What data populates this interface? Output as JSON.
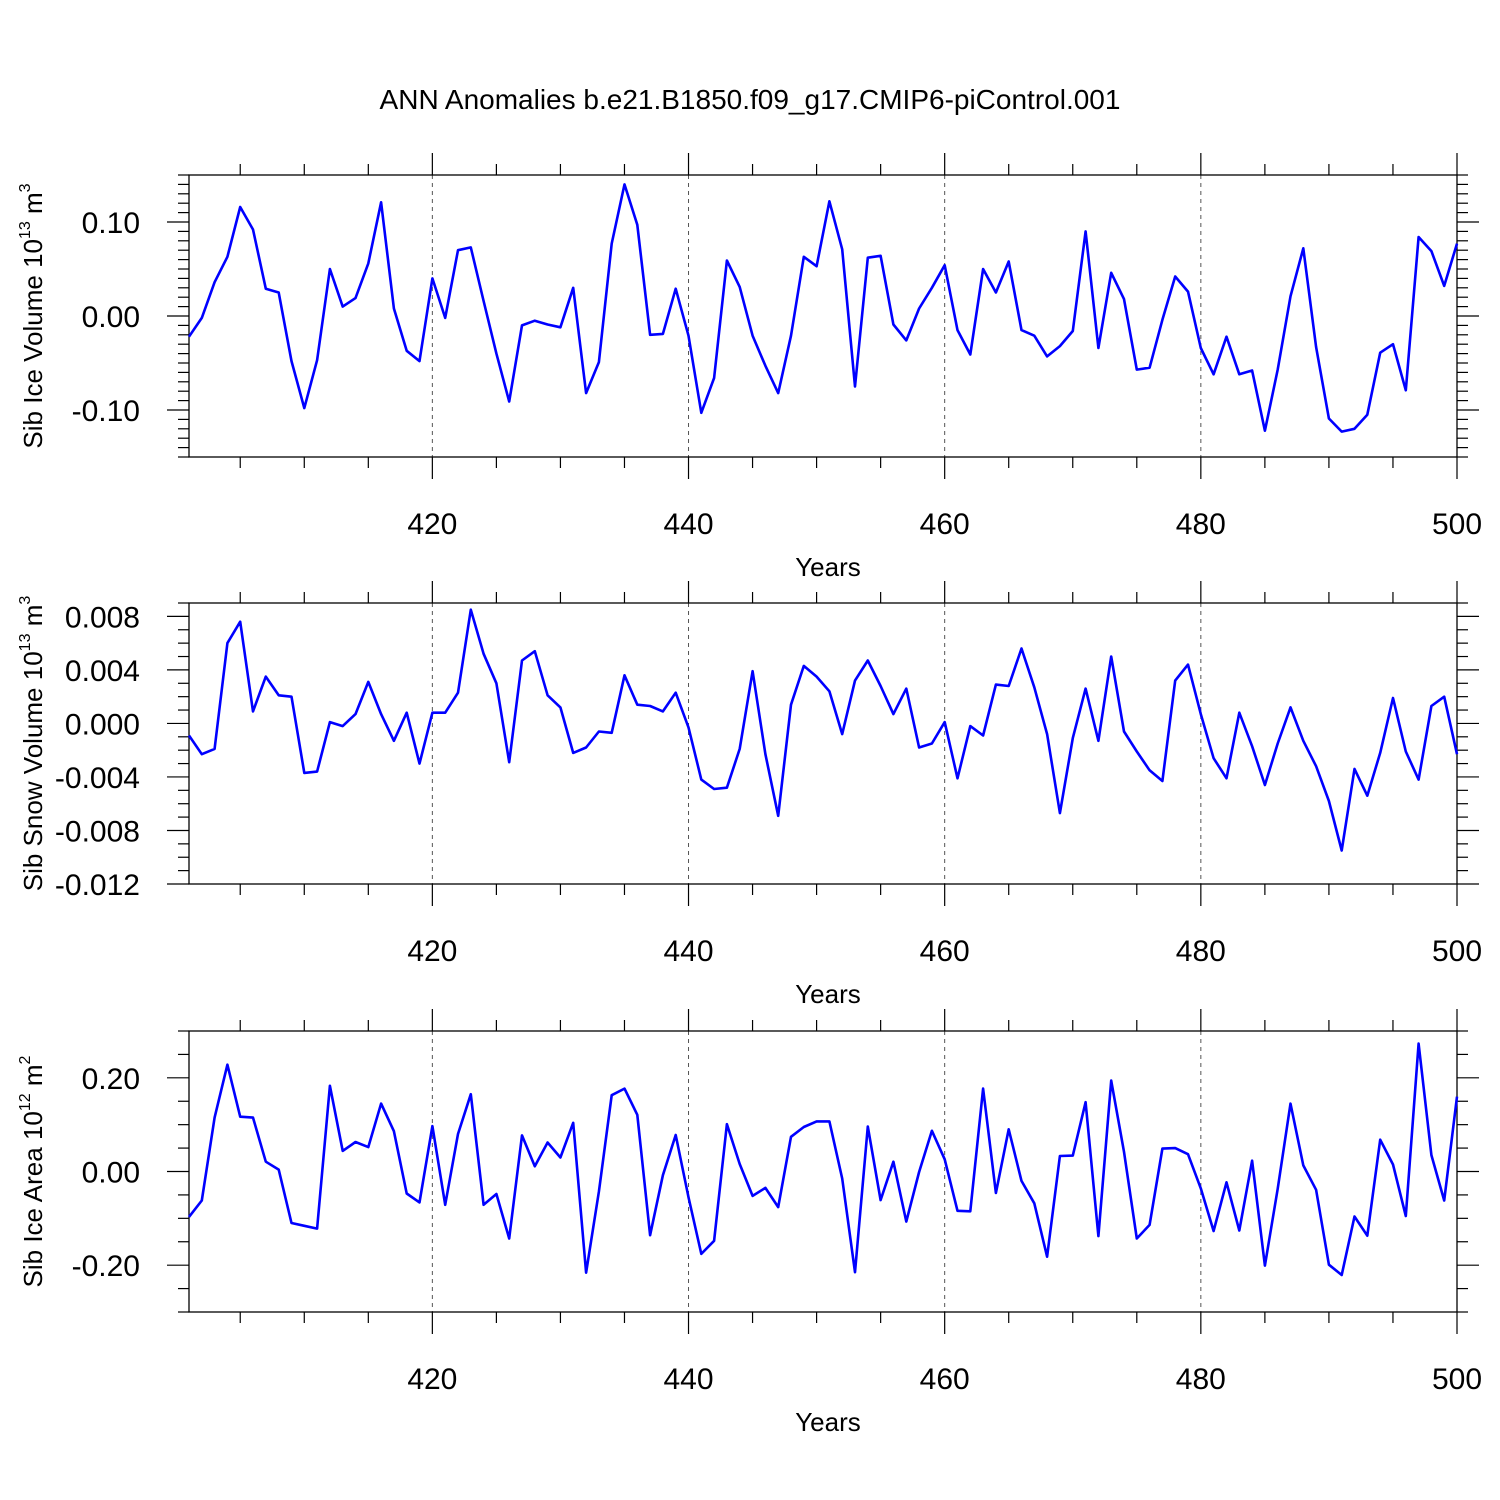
{
  "chart_data": [
    {
      "type": "line",
      "title": "ANN Anomalies b.e21.B1850.f09_g17.CMIP6-piControl.001",
      "xlabel": "Years",
      "ylabel": "Sib Ice Volume 10",
      "ylabel_exp": "13",
      "ylabel_unit": " m",
      "ylabel_unit_exp": "3",
      "xlim": [
        401,
        500
      ],
      "ylim": [
        -0.15,
        0.15
      ],
      "xticks": [
        420,
        440,
        460,
        480,
        500
      ],
      "yticks": [
        "0.10",
        "0.00",
        "-0.10"
      ],
      "ytick_values": [
        0.1,
        0.0,
        -0.1
      ],
      "line_color": "#0000ff",
      "grid": "x-dashed",
      "series": [
        {
          "x": [
            401,
            402,
            403,
            404,
            405,
            406,
            407,
            408,
            409,
            410,
            411,
            412,
            413,
            414,
            415,
            416,
            417,
            418,
            419,
            420,
            421,
            422,
            423,
            424,
            425,
            426,
            427,
            428,
            429,
            430,
            431,
            432,
            433,
            434,
            435,
            436,
            437,
            438,
            439,
            440,
            441,
            442,
            443,
            444,
            445,
            446,
            447,
            448,
            449,
            450,
            451,
            452,
            453,
            454,
            455,
            456,
            457,
            458,
            459,
            460,
            461,
            462,
            463,
            464,
            465,
            466,
            467,
            468,
            469,
            470,
            471,
            472,
            473,
            474,
            475,
            476,
            477,
            478,
            479,
            480,
            481,
            482,
            483,
            484,
            485,
            486,
            487,
            488,
            489,
            490,
            491,
            492,
            493,
            494,
            495,
            496,
            497,
            498,
            499,
            500
          ],
          "values": [
            -0.022,
            -0.002,
            0.036,
            0.063,
            0.116,
            0.092,
            0.029,
            0.025,
            -0.048,
            -0.098,
            -0.047,
            0.05,
            0.01,
            0.019,
            0.056,
            0.121,
            0.008,
            -0.037,
            -0.048,
            0.04,
            -0.002,
            0.07,
            0.073,
            0.016,
            -0.04,
            -0.091,
            -0.01,
            -0.005,
            -0.009,
            -0.012,
            0.03,
            -0.082,
            -0.049,
            0.077,
            0.14,
            0.097,
            -0.02,
            -0.019,
            0.029,
            -0.021,
            -0.103,
            -0.066,
            0.059,
            0.031,
            -0.021,
            -0.053,
            -0.082,
            -0.021,
            0.063,
            0.053,
            0.122,
            0.071,
            -0.075,
            0.062,
            0.064,
            -0.009,
            -0.026,
            0.008,
            0.03,
            0.054,
            -0.015,
            -0.041,
            0.05,
            0.025,
            0.058,
            -0.015,
            -0.021,
            -0.043,
            -0.032,
            -0.016,
            0.09,
            -0.034,
            0.046,
            0.018,
            -0.057,
            -0.055,
            -0.004,
            0.042,
            0.026,
            -0.034,
            -0.062,
            -0.022,
            -0.062,
            -0.058,
            -0.122,
            -0.057,
            0.021,
            0.072,
            -0.033,
            -0.109,
            -0.123,
            -0.12,
            -0.105,
            -0.039,
            -0.03,
            -0.079,
            0.084,
            0.069,
            0.032,
            0.077
          ]
        }
      ]
    },
    {
      "type": "line",
      "xlabel": "Years",
      "ylabel": "Sib Snow Volume 10",
      "ylabel_exp": "13",
      "ylabel_unit": " m",
      "ylabel_unit_exp": "3",
      "xlim": [
        401,
        500
      ],
      "ylim": [
        -0.012,
        0.009
      ],
      "xticks": [
        420,
        440,
        460,
        480,
        500
      ],
      "yticks": [
        "0.008",
        "0.004",
        "0.000",
        "-0.004",
        "-0.008",
        "-0.012"
      ],
      "ytick_values": [
        0.008,
        0.004,
        0.0,
        -0.004,
        -0.008,
        -0.012
      ],
      "line_color": "#0000ff",
      "grid": "x-dashed",
      "series": [
        {
          "x": [
            401,
            402,
            403,
            404,
            405,
            406,
            407,
            408,
            409,
            410,
            411,
            412,
            413,
            414,
            415,
            416,
            417,
            418,
            419,
            420,
            421,
            422,
            423,
            424,
            425,
            426,
            427,
            428,
            429,
            430,
            431,
            432,
            433,
            434,
            435,
            436,
            437,
            438,
            439,
            440,
            441,
            442,
            443,
            444,
            445,
            446,
            447,
            448,
            449,
            450,
            451,
            452,
            453,
            454,
            455,
            456,
            457,
            458,
            459,
            460,
            461,
            462,
            463,
            464,
            465,
            466,
            467,
            468,
            469,
            470,
            471,
            472,
            473,
            474,
            475,
            476,
            477,
            478,
            479,
            480,
            481,
            482,
            483,
            484,
            485,
            486,
            487,
            488,
            489,
            490,
            491,
            492,
            493,
            494,
            495,
            496,
            497,
            498,
            499,
            500
          ],
          "values": [
            -0.0009,
            -0.0023,
            -0.0019,
            0.006,
            0.0076,
            0.0009,
            0.0035,
            0.0021,
            0.002,
            -0.0037,
            -0.0036,
            0.0001,
            -0.0002,
            0.0007,
            0.0031,
            0.0007,
            -0.0013,
            0.0008,
            -0.003,
            0.0008,
            0.0008,
            0.0023,
            0.0085,
            0.0052,
            0.003,
            -0.0029,
            0.0047,
            0.0054,
            0.0021,
            0.0012,
            -0.0022,
            -0.0018,
            -0.0006,
            -0.0007,
            0.0036,
            0.0014,
            0.0013,
            0.0009,
            0.0023,
            -0.0003,
            -0.0042,
            -0.0049,
            -0.0048,
            -0.0019,
            0.0039,
            -0.0023,
            -0.0069,
            0.0014,
            0.0043,
            0.0035,
            0.0024,
            -0.0008,
            0.0032,
            0.0047,
            0.0028,
            0.0007,
            0.0026,
            -0.0018,
            -0.0015,
            0.0001,
            -0.0041,
            -0.0002,
            -0.0009,
            0.0029,
            0.0028,
            0.0056,
            0.0027,
            -0.0008,
            -0.0067,
            -0.0011,
            0.0026,
            -0.0013,
            0.005,
            -0.0006,
            -0.0021,
            -0.0035,
            -0.0043,
            0.0032,
            0.0044,
            0.0007,
            -0.0026,
            -0.0041,
            0.0008,
            -0.0017,
            -0.0046,
            -0.0015,
            0.0012,
            -0.0013,
            -0.0032,
            -0.0058,
            -0.0095,
            -0.0034,
            -0.0054,
            -0.0022,
            0.0019,
            -0.0021,
            -0.0042,
            0.0013,
            0.002,
            -0.0023
          ]
        }
      ]
    },
    {
      "type": "line",
      "xlabel": "Years",
      "ylabel": "Sib Ice Area 10",
      "ylabel_exp": "12",
      "ylabel_unit": " m",
      "ylabel_unit_exp": "2",
      "xlim": [
        401,
        500
      ],
      "ylim": [
        -0.3,
        0.3
      ],
      "xticks": [
        420,
        440,
        460,
        480,
        500
      ],
      "yticks": [
        "0.20",
        "0.00",
        "-0.20"
      ],
      "ytick_values": [
        0.2,
        0.0,
        -0.2
      ],
      "line_color": "#0000ff",
      "grid": "x-dashed",
      "series": [
        {
          "x": [
            401,
            402,
            403,
            404,
            405,
            406,
            407,
            408,
            409,
            410,
            411,
            412,
            413,
            414,
            415,
            416,
            417,
            418,
            419,
            420,
            421,
            422,
            423,
            424,
            425,
            426,
            427,
            428,
            429,
            430,
            431,
            432,
            433,
            434,
            435,
            436,
            437,
            438,
            439,
            440,
            441,
            442,
            443,
            444,
            445,
            446,
            447,
            448,
            449,
            450,
            451,
            452,
            453,
            454,
            455,
            456,
            457,
            458,
            459,
            460,
            461,
            462,
            463,
            464,
            465,
            466,
            467,
            468,
            469,
            470,
            471,
            472,
            473,
            474,
            475,
            476,
            477,
            478,
            479,
            480,
            481,
            482,
            483,
            484,
            485,
            486,
            487,
            488,
            489,
            490,
            491,
            492,
            493,
            494,
            495,
            496,
            497,
            498,
            499,
            500
          ],
          "values": [
            -0.097,
            -0.062,
            0.115,
            0.228,
            0.117,
            0.115,
            0.021,
            0.004,
            -0.11,
            -0.116,
            -0.122,
            0.183,
            0.044,
            0.063,
            0.052,
            0.145,
            0.086,
            -0.047,
            -0.066,
            0.097,
            -0.071,
            0.08,
            0.165,
            -0.071,
            -0.048,
            -0.143,
            0.077,
            0.011,
            0.062,
            0.03,
            0.104,
            -0.216,
            -0.043,
            0.163,
            0.177,
            0.121,
            -0.136,
            -0.008,
            0.078,
            -0.055,
            -0.176,
            -0.148,
            0.101,
            0.016,
            -0.052,
            -0.035,
            -0.076,
            0.074,
            0.095,
            0.107,
            0.107,
            -0.015,
            -0.215,
            0.096,
            -0.061,
            0.021,
            -0.107,
            -0.001,
            0.087,
            0.026,
            -0.084,
            -0.085,
            0.177,
            -0.046,
            0.09,
            -0.02,
            -0.068,
            -0.182,
            0.033,
            0.034,
            0.148,
            -0.138,
            0.194,
            0.042,
            -0.143,
            -0.114,
            0.049,
            0.05,
            0.037,
            -0.036,
            -0.127,
            -0.023,
            -0.126,
            0.023,
            -0.201,
            -0.037,
            0.145,
            0.013,
            -0.039,
            -0.199,
            -0.221,
            -0.096,
            -0.137,
            0.068,
            0.015,
            -0.095,
            0.273,
            0.035,
            -0.062,
            0.16
          ]
        }
      ]
    }
  ]
}
